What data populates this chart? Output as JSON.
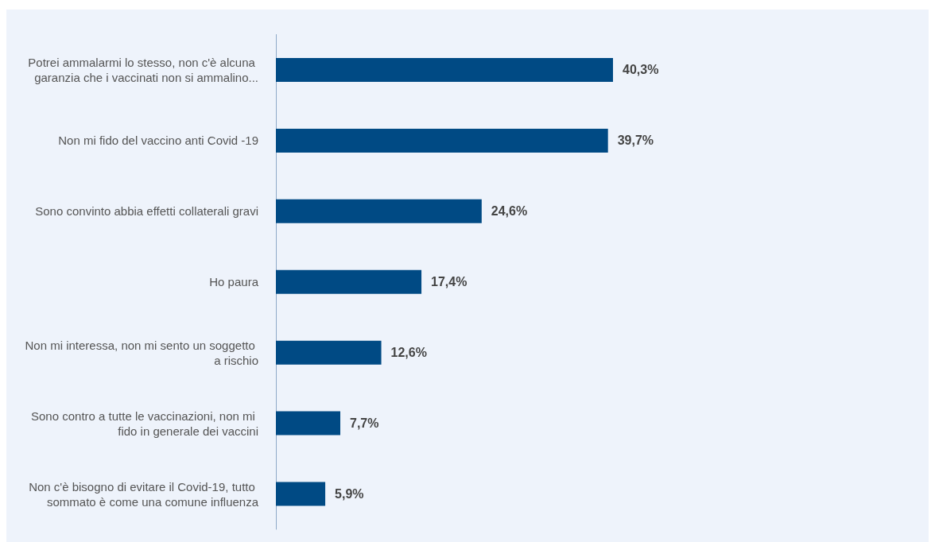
{
  "chart_data": {
    "type": "bar",
    "orientation": "horizontal",
    "categories": [
      "Potrei ammalarmi lo stesso, non c'è alcuna garanzia che i vaccinati non si ammalino...",
      "Non mi fido del vaccino anti Covid -19",
      "Sono convinto abbia effetti collaterali gravi",
      "Ho paura",
      "Non mi interessa, non mi sento un soggetto a rischio",
      "Sono contro a tutte le vaccinazioni, non mi fido in generale dei vaccini",
      "Non c'è bisogno di evitare il Covid-19, tutto sommato è come una comune influenza"
    ],
    "values": [
      40.3,
      39.7,
      24.6,
      17.4,
      12.6,
      7.7,
      5.9
    ],
    "value_labels": [
      "40,3%",
      "39,7%",
      "24,6%",
      "17,4%",
      "12,6%",
      "7,7%",
      "5,9%"
    ],
    "color": "#004a84"
  }
}
